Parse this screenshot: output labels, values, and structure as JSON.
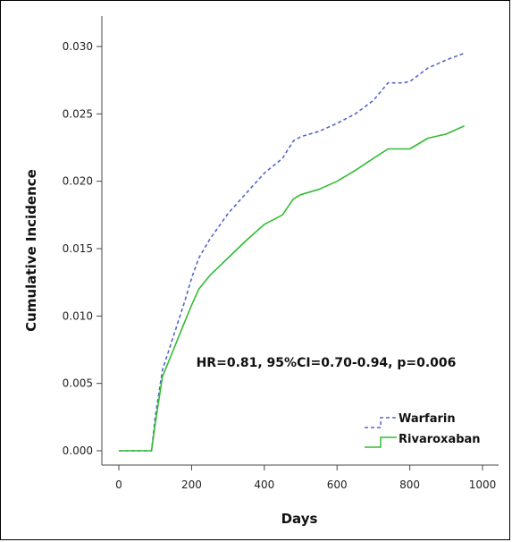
{
  "chart_data": {
    "type": "line",
    "xlabel": "Days",
    "ylabel": "Cumulative Incidence",
    "xlim": [
      0,
      1000
    ],
    "ylim": [
      0,
      0.03
    ],
    "x_ticks": [
      0,
      200,
      400,
      600,
      800,
      1000
    ],
    "y_ticks": [
      0.0,
      0.005,
      0.01,
      0.015,
      0.02,
      0.025,
      0.03
    ],
    "x_tick_labels": [
      "0",
      "200",
      "400",
      "600",
      "800",
      "1000"
    ],
    "y_tick_labels": [
      "0.000",
      "0.005",
      "0.010",
      "0.015",
      "0.020",
      "0.025",
      "0.030"
    ],
    "grid": false,
    "legend_position": "bottom-right",
    "annotation": "HR=0.81, 95%CI=0.70-0.94, p=0.006",
    "series": [
      {
        "name": "Warfarin",
        "color": "#5566cc",
        "style": "dashed",
        "x": [
          0,
          90,
          100,
          120,
          150,
          180,
          200,
          220,
          250,
          300,
          350,
          400,
          450,
          480,
          500,
          550,
          600,
          650,
          700,
          740,
          780,
          800,
          850,
          900,
          950
        ],
        "y": [
          0.0,
          0.0,
          0.0025,
          0.006,
          0.0085,
          0.011,
          0.0128,
          0.0143,
          0.0157,
          0.0176,
          0.0191,
          0.0206,
          0.0217,
          0.023,
          0.0233,
          0.0237,
          0.0243,
          0.025,
          0.026,
          0.0273,
          0.0273,
          0.0274,
          0.0284,
          0.029,
          0.0295
        ]
      },
      {
        "name": "Rivaroxaban",
        "color": "#33bb33",
        "style": "solid",
        "x": [
          0,
          90,
          100,
          120,
          150,
          180,
          200,
          220,
          250,
          300,
          350,
          400,
          450,
          480,
          500,
          550,
          600,
          650,
          700,
          740,
          780,
          800,
          850,
          900,
          950
        ],
        "y": [
          0.0,
          0.0,
          0.002,
          0.0055,
          0.0075,
          0.0095,
          0.0108,
          0.012,
          0.013,
          0.0143,
          0.0156,
          0.0168,
          0.0175,
          0.0187,
          0.019,
          0.0194,
          0.02,
          0.0208,
          0.0217,
          0.0224,
          0.0224,
          0.0224,
          0.0232,
          0.0235,
          0.0241
        ]
      }
    ]
  }
}
